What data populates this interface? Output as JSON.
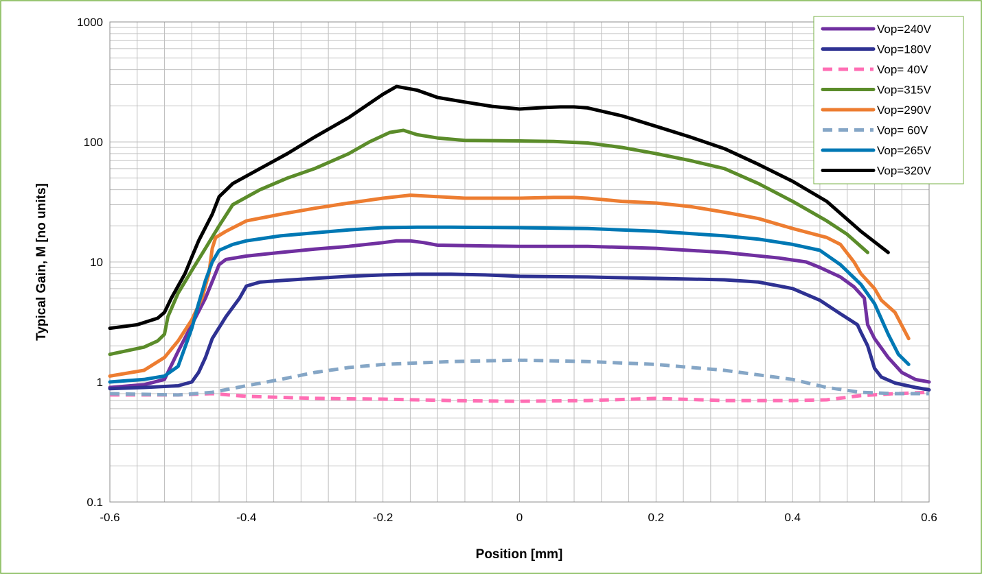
{
  "chart_data": {
    "type": "line",
    "title": "",
    "xlabel": "Position [mm]",
    "ylabel": "Typical Gain, M [no units]",
    "xlim": [
      -0.6,
      0.6
    ],
    "ylim": [
      0.1,
      1000
    ],
    "yscale": "log",
    "grid": true,
    "legend_position": "top-right",
    "x_ticks": [
      "-0.6",
      "-0.4",
      "-0.2",
      "0",
      "0.2",
      "0.4",
      "0.6"
    ],
    "y_ticks": [
      "0.1",
      "1",
      "10",
      "100",
      "1000"
    ],
    "series": [
      {
        "name": "Vop=240V",
        "color": "#7030a0",
        "dash": false,
        "points": [
          [
            -0.6,
            0.9
          ],
          [
            -0.55,
            0.95
          ],
          [
            -0.52,
            1.05
          ],
          [
            -0.5,
            1.8
          ],
          [
            -0.48,
            3
          ],
          [
            -0.46,
            5
          ],
          [
            -0.44,
            9.5
          ],
          [
            -0.43,
            10.5
          ],
          [
            -0.4,
            11.2
          ],
          [
            -0.35,
            12
          ],
          [
            -0.3,
            12.8
          ],
          [
            -0.25,
            13.5
          ],
          [
            -0.2,
            14.5
          ],
          [
            -0.18,
            15
          ],
          [
            -0.16,
            15
          ],
          [
            -0.14,
            14.5
          ],
          [
            -0.12,
            13.8
          ],
          [
            -0.05,
            13.6
          ],
          [
            0.0,
            13.5
          ],
          [
            0.1,
            13.5
          ],
          [
            0.2,
            13
          ],
          [
            0.3,
            12
          ],
          [
            0.38,
            10.8
          ],
          [
            0.42,
            10
          ],
          [
            0.44,
            9
          ],
          [
            0.47,
            7.5
          ],
          [
            0.49,
            6.2
          ],
          [
            0.505,
            5
          ],
          [
            0.51,
            3
          ],
          [
            0.52,
            2.3
          ],
          [
            0.54,
            1.6
          ],
          [
            0.56,
            1.2
          ],
          [
            0.58,
            1.05
          ],
          [
            0.6,
            1.0
          ]
        ]
      },
      {
        "name": "Vop=180V",
        "color": "#2e3192",
        "dash": false,
        "points": [
          [
            -0.6,
            0.88
          ],
          [
            -0.55,
            0.9
          ],
          [
            -0.5,
            0.93
          ],
          [
            -0.48,
            1.0
          ],
          [
            -0.47,
            1.2
          ],
          [
            -0.46,
            1.6
          ],
          [
            -0.45,
            2.3
          ],
          [
            -0.43,
            3.5
          ],
          [
            -0.41,
            5
          ],
          [
            -0.4,
            6.3
          ],
          [
            -0.38,
            6.8
          ],
          [
            -0.35,
            7.0
          ],
          [
            -0.3,
            7.3
          ],
          [
            -0.25,
            7.6
          ],
          [
            -0.2,
            7.8
          ],
          [
            -0.15,
            7.9
          ],
          [
            -0.1,
            7.9
          ],
          [
            -0.05,
            7.8
          ],
          [
            0.0,
            7.6
          ],
          [
            0.1,
            7.5
          ],
          [
            0.2,
            7.3
          ],
          [
            0.3,
            7.1
          ],
          [
            0.35,
            6.8
          ],
          [
            0.4,
            6.0
          ],
          [
            0.44,
            4.8
          ],
          [
            0.47,
            3.7
          ],
          [
            0.495,
            3.0
          ],
          [
            0.5,
            2.6
          ],
          [
            0.51,
            2.0
          ],
          [
            0.52,
            1.3
          ],
          [
            0.53,
            1.1
          ],
          [
            0.55,
            0.98
          ],
          [
            0.58,
            0.9
          ],
          [
            0.6,
            0.86
          ]
        ]
      },
      {
        "name": "Vop= 40V",
        "color": "#ff6eb4",
        "dash": true,
        "points": [
          [
            -0.6,
            0.78
          ],
          [
            -0.5,
            0.78
          ],
          [
            -0.45,
            0.8
          ],
          [
            -0.4,
            0.76
          ],
          [
            -0.3,
            0.73
          ],
          [
            -0.2,
            0.72
          ],
          [
            -0.1,
            0.7
          ],
          [
            0.0,
            0.69
          ],
          [
            0.1,
            0.7
          ],
          [
            0.2,
            0.73
          ],
          [
            0.3,
            0.7
          ],
          [
            0.4,
            0.7
          ],
          [
            0.45,
            0.71
          ],
          [
            0.5,
            0.77
          ],
          [
            0.55,
            0.8
          ],
          [
            0.6,
            0.82
          ]
        ]
      },
      {
        "name": "Vop=315V",
        "color": "#5b8c2a",
        "dash": false,
        "points": [
          [
            -0.6,
            1.7
          ],
          [
            -0.55,
            1.95
          ],
          [
            -0.53,
            2.2
          ],
          [
            -0.52,
            2.5
          ],
          [
            -0.515,
            3.5
          ],
          [
            -0.5,
            5.5
          ],
          [
            -0.48,
            8.5
          ],
          [
            -0.46,
            13
          ],
          [
            -0.44,
            20
          ],
          [
            -0.42,
            30
          ],
          [
            -0.38,
            40
          ],
          [
            -0.34,
            50
          ],
          [
            -0.3,
            60
          ],
          [
            -0.25,
            80
          ],
          [
            -0.22,
            100
          ],
          [
            -0.19,
            120
          ],
          [
            -0.17,
            125
          ],
          [
            -0.15,
            115
          ],
          [
            -0.12,
            108
          ],
          [
            -0.08,
            103
          ],
          [
            0.0,
            102
          ],
          [
            0.05,
            101
          ],
          [
            0.1,
            98
          ],
          [
            0.15,
            90
          ],
          [
            0.2,
            80
          ],
          [
            0.25,
            70
          ],
          [
            0.3,
            60
          ],
          [
            0.35,
            45
          ],
          [
            0.4,
            32
          ],
          [
            0.45,
            22
          ],
          [
            0.48,
            17
          ],
          [
            0.51,
            12
          ]
        ]
      },
      {
        "name": "Vop=290V",
        "color": "#ed7d31",
        "dash": false,
        "points": [
          [
            -0.6,
            1.12
          ],
          [
            -0.55,
            1.25
          ],
          [
            -0.52,
            1.6
          ],
          [
            -0.5,
            2.2
          ],
          [
            -0.48,
            3.3
          ],
          [
            -0.465,
            5
          ],
          [
            -0.455,
            8
          ],
          [
            -0.45,
            13
          ],
          [
            -0.445,
            16
          ],
          [
            -0.43,
            18
          ],
          [
            -0.4,
            22
          ],
          [
            -0.35,
            25
          ],
          [
            -0.3,
            28
          ],
          [
            -0.25,
            31
          ],
          [
            -0.2,
            34
          ],
          [
            -0.16,
            36
          ],
          [
            -0.12,
            35
          ],
          [
            -0.08,
            34
          ],
          [
            0.0,
            34
          ],
          [
            0.05,
            34.5
          ],
          [
            0.08,
            34.5
          ],
          [
            0.1,
            34
          ],
          [
            0.15,
            32
          ],
          [
            0.2,
            31
          ],
          [
            0.25,
            29
          ],
          [
            0.3,
            26
          ],
          [
            0.35,
            23
          ],
          [
            0.4,
            19
          ],
          [
            0.45,
            16
          ],
          [
            0.47,
            14
          ],
          [
            0.49,
            10
          ],
          [
            0.5,
            8
          ],
          [
            0.52,
            6
          ],
          [
            0.53,
            4.8
          ],
          [
            0.55,
            3.8
          ],
          [
            0.57,
            2.3
          ]
        ]
      },
      {
        "name": "Vop= 60V",
        "color": "#85a6c6",
        "dash": true,
        "points": [
          [
            -0.6,
            0.8
          ],
          [
            -0.5,
            0.78
          ],
          [
            -0.45,
            0.82
          ],
          [
            -0.4,
            0.93
          ],
          [
            -0.35,
            1.05
          ],
          [
            -0.3,
            1.2
          ],
          [
            -0.25,
            1.32
          ],
          [
            -0.2,
            1.4
          ],
          [
            -0.1,
            1.48
          ],
          [
            0.0,
            1.52
          ],
          [
            0.1,
            1.48
          ],
          [
            0.2,
            1.4
          ],
          [
            0.3,
            1.25
          ],
          [
            0.4,
            1.05
          ],
          [
            0.45,
            0.9
          ],
          [
            0.5,
            0.82
          ],
          [
            0.55,
            0.8
          ],
          [
            0.6,
            0.8
          ]
        ]
      },
      {
        "name": "Vop=265V",
        "color": "#0078b4",
        "dash": false,
        "points": [
          [
            -0.6,
            1.0
          ],
          [
            -0.55,
            1.05
          ],
          [
            -0.52,
            1.12
          ],
          [
            -0.5,
            1.35
          ],
          [
            -0.48,
            2.8
          ],
          [
            -0.47,
            4.5
          ],
          [
            -0.46,
            7
          ],
          [
            -0.45,
            10
          ],
          [
            -0.44,
            12.5
          ],
          [
            -0.42,
            14
          ],
          [
            -0.4,
            15
          ],
          [
            -0.35,
            16.5
          ],
          [
            -0.3,
            17.5
          ],
          [
            -0.25,
            18.5
          ],
          [
            -0.2,
            19.3
          ],
          [
            -0.15,
            19.5
          ],
          [
            -0.1,
            19.5
          ],
          [
            0.0,
            19.3
          ],
          [
            0.1,
            19
          ],
          [
            0.2,
            18
          ],
          [
            0.3,
            16.5
          ],
          [
            0.35,
            15.5
          ],
          [
            0.4,
            14
          ],
          [
            0.44,
            12.5
          ],
          [
            0.47,
            9.5
          ],
          [
            0.5,
            6.5
          ],
          [
            0.52,
            4.5
          ],
          [
            0.54,
            2.5
          ],
          [
            0.555,
            1.7
          ],
          [
            0.57,
            1.4
          ]
        ]
      },
      {
        "name": "Vop=320V",
        "color": "#000000",
        "dash": false,
        "points": [
          [
            -0.6,
            2.8
          ],
          [
            -0.56,
            3.0
          ],
          [
            -0.53,
            3.4
          ],
          [
            -0.52,
            3.8
          ],
          [
            -0.51,
            5
          ],
          [
            -0.49,
            8
          ],
          [
            -0.48,
            11
          ],
          [
            -0.47,
            15
          ],
          [
            -0.45,
            25
          ],
          [
            -0.44,
            35
          ],
          [
            -0.42,
            45
          ],
          [
            -0.38,
            60
          ],
          [
            -0.34,
            80
          ],
          [
            -0.3,
            110
          ],
          [
            -0.25,
            160
          ],
          [
            -0.2,
            250
          ],
          [
            -0.18,
            290
          ],
          [
            -0.15,
            270
          ],
          [
            -0.12,
            235
          ],
          [
            -0.08,
            215
          ],
          [
            -0.04,
            198
          ],
          [
            0.0,
            188
          ],
          [
            0.04,
            194
          ],
          [
            0.06,
            196
          ],
          [
            0.08,
            196
          ],
          [
            0.1,
            192
          ],
          [
            0.15,
            165
          ],
          [
            0.2,
            135
          ],
          [
            0.25,
            110
          ],
          [
            0.3,
            88
          ],
          [
            0.35,
            65
          ],
          [
            0.4,
            47
          ],
          [
            0.45,
            32
          ],
          [
            0.5,
            18
          ],
          [
            0.54,
            12
          ]
        ]
      }
    ]
  }
}
